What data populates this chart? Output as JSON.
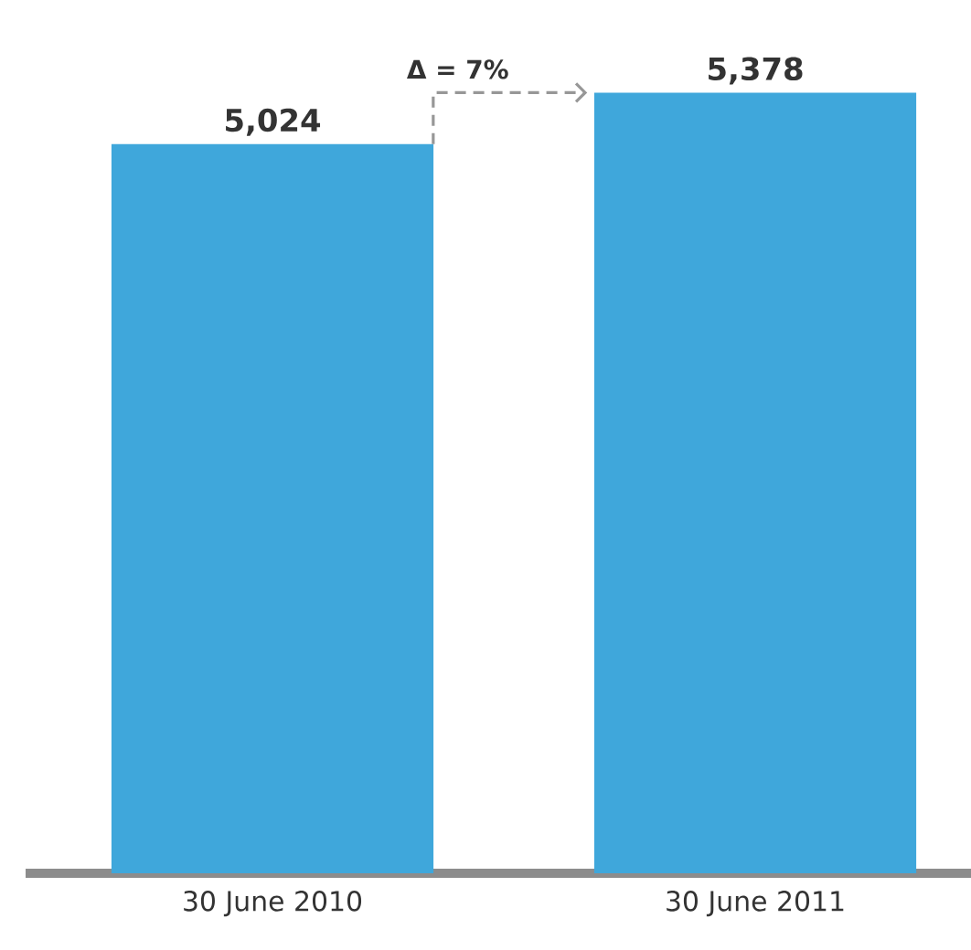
{
  "chart_data": {
    "type": "bar",
    "categories": [
      "30 June 2010",
      "30 June 2011"
    ],
    "values": [
      5024,
      5378
    ],
    "value_labels": [
      "5,024",
      "5,378"
    ],
    "color": "#3fa7db",
    "annotations": [
      "Δ = 7%"
    ]
  }
}
